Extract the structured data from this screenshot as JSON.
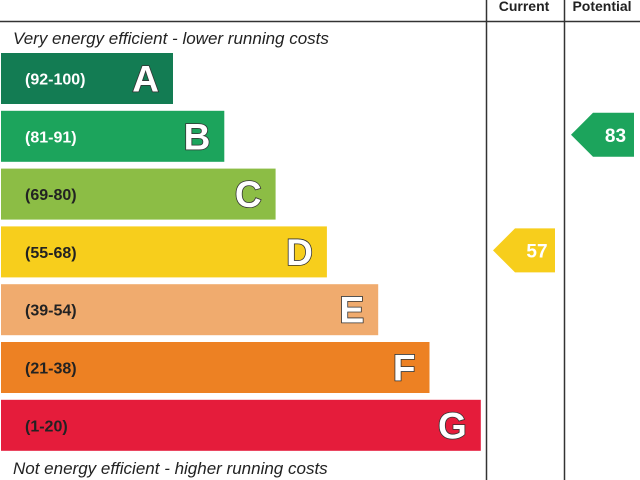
{
  "chart_data": {
    "type": "bar",
    "columns": {
      "current": "Current",
      "potential": "Potential"
    },
    "top_caption": "Very energy efficient - lower running costs",
    "bottom_caption": "Not energy efficient - higher running costs",
    "bands": [
      {
        "letter": "A",
        "range": "(92-100)",
        "color": "#137c53",
        "range_color": "#ffffff"
      },
      {
        "letter": "B",
        "range": "(81-91)",
        "color": "#1ca45c",
        "range_color": "#ffffff"
      },
      {
        "letter": "C",
        "range": "(69-80)",
        "color": "#8cbd45",
        "range_color": "#222222"
      },
      {
        "letter": "D",
        "range": "(55-68)",
        "color": "#f7ce1c",
        "range_color": "#222222"
      },
      {
        "letter": "E",
        "range": "(39-54)",
        "color": "#f0ab6e",
        "range_color": "#222222"
      },
      {
        "letter": "F",
        "range": "(21-38)",
        "color": "#ed8123",
        "range_color": "#222222"
      },
      {
        "letter": "G",
        "range": "(1-20)",
        "color": "#e51c3b",
        "range_color": "#222222"
      }
    ],
    "ratings": {
      "current": {
        "value": 57,
        "label": "57",
        "band": "D",
        "color": "#f7ce1c"
      },
      "potential": {
        "value": 83,
        "label": "83",
        "band": "B",
        "color": "#1ca45c"
      }
    }
  }
}
